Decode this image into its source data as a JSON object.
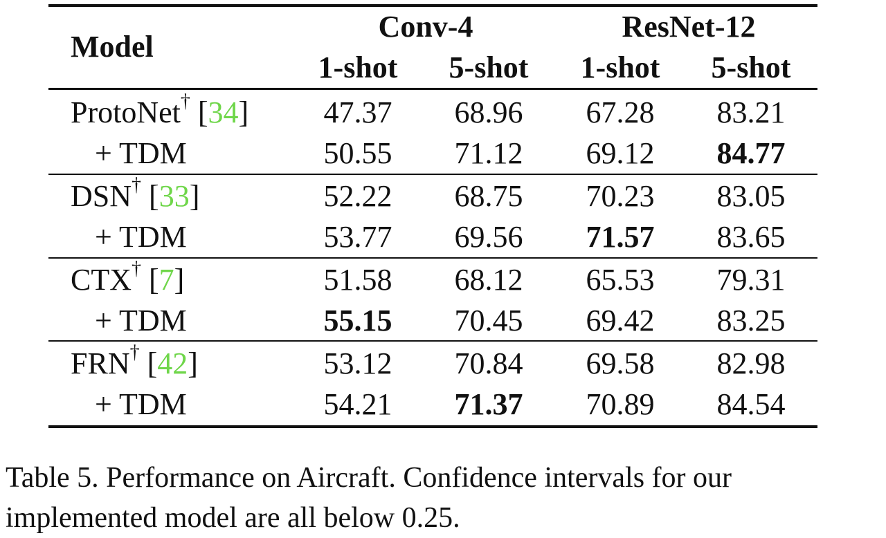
{
  "table": {
    "headers": {
      "model": "Model",
      "groups": [
        "Conv-4",
        "ResNet-12"
      ],
      "subcolumns": [
        "1-shot",
        "5-shot",
        "1-shot",
        "5-shot"
      ]
    },
    "dagger": "†",
    "rows": [
      {
        "model": "ProtoNet",
        "cite": "34",
        "base": [
          "47.37",
          "68.96",
          "67.28",
          "83.21"
        ],
        "tdm_label": "+ TDM",
        "tdm": [
          "50.55",
          "71.12",
          "69.12",
          "84.77"
        ],
        "base_bold": [
          false,
          false,
          false,
          false
        ],
        "tdm_bold": [
          false,
          false,
          false,
          true
        ]
      },
      {
        "model": "DSN",
        "cite": "33",
        "base": [
          "52.22",
          "68.75",
          "70.23",
          "83.05"
        ],
        "tdm_label": "+ TDM",
        "tdm": [
          "53.77",
          "69.56",
          "71.57",
          "83.65"
        ],
        "base_bold": [
          false,
          false,
          false,
          false
        ],
        "tdm_bold": [
          false,
          false,
          true,
          false
        ]
      },
      {
        "model": "CTX",
        "cite": "7",
        "base": [
          "51.58",
          "68.12",
          "65.53",
          "79.31"
        ],
        "tdm_label": "+ TDM",
        "tdm": [
          "55.15",
          "70.45",
          "69.42",
          "83.25"
        ],
        "base_bold": [
          false,
          false,
          false,
          false
        ],
        "tdm_bold": [
          true,
          false,
          false,
          false
        ]
      },
      {
        "model": "FRN",
        "cite": "42",
        "base": [
          "53.12",
          "70.84",
          "69.58",
          "82.98"
        ],
        "tdm_label": "+ TDM",
        "tdm": [
          "54.21",
          "71.37",
          "70.89",
          "84.54"
        ],
        "base_bold": [
          false,
          false,
          false,
          false
        ],
        "tdm_bold": [
          false,
          true,
          false,
          false
        ]
      }
    ]
  },
  "caption": {
    "line1": "Table 5.  Performance on Aircraft.  Confidence intervals for our",
    "line2": "implemented model are all below 0.25."
  }
}
